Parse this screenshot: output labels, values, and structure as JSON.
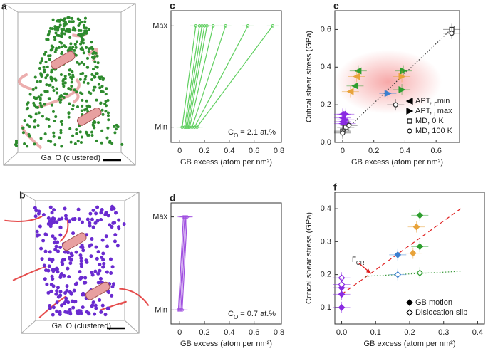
{
  "images": [
    {
      "label": "a",
      "legend": [
        "Ga",
        "O (clustered)"
      ]
    },
    {
      "label": "b",
      "legend": [
        "Ga",
        "O (clustered)"
      ]
    }
  ],
  "chart_data": [
    {
      "type": "line",
      "label": "c",
      "xlabel": "GB excess (atom per nm²)",
      "xlim": [
        -0.07,
        0.82
      ],
      "xticks": [
        0,
        0.2,
        0.4,
        0.6,
        0.8
      ],
      "ylim": [
        -0.15,
        1.15
      ],
      "yticks": [
        {
          "value": 0,
          "label": "Min"
        },
        {
          "value": 1,
          "label": "Max"
        }
      ],
      "annotation": [
        "C",
        "O",
        " = 2.1 at.%"
      ],
      "annotation_color": "#3dbb3d",
      "series": [
        {
          "color": "#5fcf5f",
          "x": [
            0.02,
            0.13
          ],
          "values": [
            0,
            1
          ]
        },
        {
          "color": "#5fcf5f",
          "x": [
            0.04,
            0.16
          ],
          "values": [
            0,
            1
          ]
        },
        {
          "color": "#5fcf5f",
          "x": [
            0.05,
            0.18
          ],
          "values": [
            0,
            1
          ]
        },
        {
          "color": "#5fcf5f",
          "x": [
            0.06,
            0.2
          ],
          "values": [
            0,
            1
          ]
        },
        {
          "color": "#5fcf5f",
          "x": [
            0.07,
            0.22
          ],
          "values": [
            0,
            1
          ]
        },
        {
          "color": "#5fcf5f",
          "x": [
            0.08,
            0.27
          ],
          "values": [
            0,
            1
          ]
        },
        {
          "color": "#5fcf5f",
          "x": [
            0.1,
            0.37
          ],
          "values": [
            0,
            1
          ]
        },
        {
          "color": "#5fcf5f",
          "x": [
            0.12,
            0.55
          ],
          "values": [
            0,
            1
          ]
        },
        {
          "color": "#5fcf5f",
          "x": [
            0.14,
            0.75
          ],
          "values": [
            0,
            1
          ]
        }
      ]
    },
    {
      "type": "line",
      "label": "d",
      "xlabel": "GB excess (atom per nm²)",
      "xlim": [
        -0.07,
        0.82
      ],
      "xticks": [
        0,
        0.2,
        0.4,
        0.6,
        0.8
      ],
      "ylim": [
        -0.15,
        1.15
      ],
      "yticks": [
        {
          "value": 0,
          "label": "Min"
        },
        {
          "value": 1,
          "label": "Max"
        }
      ],
      "annotation": [
        "C",
        "O",
        " = 0.7 at.%"
      ],
      "annotation_color": "#8a2be2",
      "series": [
        {
          "color": "#a050e0",
          "x": [
            -0.01,
            0.03
          ],
          "values": [
            0,
            1
          ]
        },
        {
          "color": "#a050e0",
          "x": [
            0.0,
            0.04
          ],
          "values": [
            0,
            1
          ]
        },
        {
          "color": "#a050e0",
          "x": [
            0.01,
            0.05
          ],
          "values": [
            0,
            1
          ]
        },
        {
          "color": "#a050e0",
          "x": [
            0.02,
            0.06
          ],
          "values": [
            0,
            1
          ]
        }
      ]
    },
    {
      "type": "scatter",
      "label": "e",
      "xlabel": "GB excess (atom per nm²)",
      "ylabel": "Critical shear stress (GPa)",
      "xlim": [
        -0.05,
        0.75
      ],
      "xticks": [
        0,
        0.2,
        0.4,
        0.6
      ],
      "ylim": [
        0,
        0.7
      ],
      "yticks": [
        {
          "value": 0,
          "label": "0.0"
        },
        0.2,
        0.4,
        0.6
      ],
      "lines": [
        {
          "color": "#333333",
          "dash": "dotted",
          "x": [
            0,
            0.72
          ],
          "values": [
            0.05,
            0.62
          ]
        }
      ],
      "series": [
        {
          "name": [
            "APT, ",
            "Γ",
            "min"
          ],
          "marker": "triangle-left",
          "x": [
            0.1,
            0.09,
            0.08,
            0.05,
            0.0,
            0.0,
            0.0,
            0.0
          ],
          "values": [
            0.38,
            0.35,
            0.3,
            0.27,
            0.15,
            0.13,
            0.11,
            0.1
          ],
          "colors": [
            "#2e9e2e",
            "#e8a33a",
            "#2e9e2e",
            "#e8a33a",
            "#8a2be2",
            "#8a2be2",
            "#8a2be2",
            "#8a2be2"
          ]
        },
        {
          "name": [
            "APT, ",
            "Γ",
            "max"
          ],
          "marker": "triangle-right",
          "x": [
            0.39,
            0.38,
            0.38,
            0.29,
            0.02,
            0.02,
            0.03
          ],
          "values": [
            0.38,
            0.35,
            0.28,
            0.26,
            0.15,
            0.12,
            0.1
          ],
          "colors": [
            "#2e9e2e",
            "#e8a33a",
            "#2e9e2e",
            "#3a7fd0",
            "#8a2be2",
            "#8a2be2",
            "#8a2be2"
          ]
        },
        {
          "name": [
            "MD, 0 K"
          ],
          "marker": "square-open",
          "x": [
            0.7,
            0.02,
            0.0
          ],
          "values": [
            0.6,
            0.08,
            0.06
          ],
          "colors": [
            "#333333",
            "#333333",
            "#333333"
          ]
        },
        {
          "name": [
            "MD, 100 K"
          ],
          "marker": "circle-open",
          "x": [
            0.7,
            0.34,
            0.04,
            0.0
          ],
          "values": [
            0.58,
            0.2,
            0.09,
            0.05
          ],
          "colors": [
            "#333333",
            "#333333",
            "#333333",
            "#333333"
          ]
        }
      ]
    },
    {
      "type": "scatter",
      "label": "f",
      "xlabel": "GB excess (atom per nm²)",
      "ylabel": "Critical shear stress (GPa)",
      "xlim": [
        -0.02,
        0.42
      ],
      "xticks": [
        {
          "value": 0,
          "label": "0.0"
        },
        0.1,
        0.2,
        0.3,
        0.4
      ],
      "ylim": [
        0.05,
        0.45
      ],
      "yticks": [
        0.1,
        0.2,
        0.3,
        0.4
      ],
      "annotation": [
        "Γ",
        "CR"
      ],
      "annotation_color": "#e02020",
      "lines": [
        {
          "color": "#e02020",
          "dash": "dashed",
          "x": [
            0,
            0.35
          ],
          "values": [
            0.14,
            0.4
          ]
        },
        {
          "color": "#3a9a3a",
          "dash": "dotted",
          "x": [
            0.07,
            0.35
          ],
          "values": [
            0.195,
            0.21
          ]
        }
      ],
      "series": [
        {
          "name": [
            "GB motion"
          ],
          "marker": "diamond",
          "x": [
            0.23,
            0.22,
            0.23,
            0.21,
            0.165,
            0.0,
            0.0,
            0.0
          ],
          "values": [
            0.38,
            0.345,
            0.285,
            0.265,
            0.26,
            0.16,
            0.14,
            0.1
          ],
          "colors": [
            "#2e9e2e",
            "#e8a33a",
            "#2e9e2e",
            "#e8a33a",
            "#3a7fd0",
            "#8a2be2",
            "#8a2be2",
            "#8a2be2"
          ]
        },
        {
          "name": [
            "Dislocation slip"
          ],
          "marker": "diamond-open",
          "x": [
            0.23,
            0.165,
            0.0,
            0.0
          ],
          "values": [
            0.205,
            0.2,
            0.19,
            0.17
          ],
          "colors": [
            "#2e9e2e",
            "#3a7fd0",
            "#8a2be2",
            "#8a2be2"
          ]
        }
      ]
    }
  ]
}
